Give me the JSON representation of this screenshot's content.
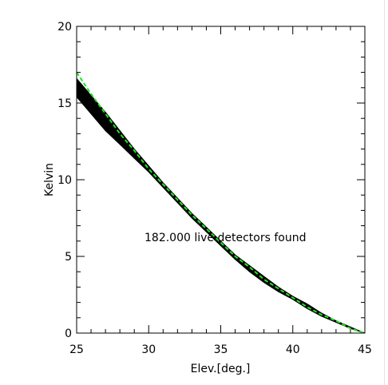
{
  "chart_data": {
    "type": "line",
    "xlabel": "Elev.[deg.]",
    "ylabel": "Kelvin",
    "xlim": [
      25,
      45
    ],
    "ylim": [
      0,
      20
    ],
    "x_ticks": [
      25,
      30,
      35,
      40,
      45
    ],
    "y_ticks": [
      0,
      5,
      10,
      15,
      20
    ],
    "annotation": "182.000 live detectors found",
    "grid": false,
    "band_color": "#000000",
    "fit_color": "#1ee61e",
    "band": {
      "x": [
        25,
        26,
        27,
        28,
        29,
        30,
        31,
        32,
        33,
        34,
        35,
        36,
        37,
        38,
        39,
        40,
        41,
        42,
        43,
        44,
        45
      ],
      "upper": [
        16.6,
        15.5,
        14.4,
        13.2,
        12.0,
        10.9,
        9.8,
        8.8,
        7.8,
        6.9,
        6.0,
        5.1,
        4.4,
        3.7,
        3.0,
        2.4,
        1.9,
        1.3,
        0.8,
        0.4,
        0.0
      ],
      "lower": [
        15.4,
        14.3,
        13.2,
        12.3,
        11.4,
        10.5,
        9.5,
        8.5,
        7.5,
        6.6,
        5.7,
        4.8,
        4.0,
        3.3,
        2.7,
        2.2,
        1.6,
        1.1,
        0.7,
        0.3,
        0.0
      ]
    },
    "series": [
      {
        "x": [
          25,
          26,
          27,
          28,
          29,
          30,
          31,
          32,
          33,
          34,
          35,
          36,
          37,
          38,
          39,
          40,
          41,
          42,
          43,
          44,
          45
        ],
        "values": [
          17.0,
          15.6,
          14.3,
          13.0,
          11.9,
          10.7,
          9.7,
          8.7,
          7.7,
          6.8,
          5.9,
          5.0,
          4.3,
          3.5,
          2.9,
          2.3,
          1.7,
          1.2,
          0.8,
          0.3,
          0.0
        ]
      }
    ]
  }
}
